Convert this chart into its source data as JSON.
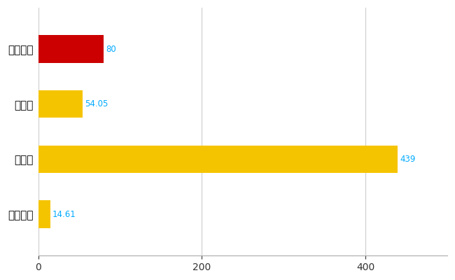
{
  "categories": [
    "うるま市",
    "県平均",
    "県最大",
    "全国平均"
  ],
  "values": [
    80,
    54.05,
    439,
    14.61
  ],
  "bar_colors": [
    "#cc0000",
    "#f5c400",
    "#f5c400",
    "#f5c400"
  ],
  "value_labels": [
    "80",
    "54.05",
    "439",
    "14.61"
  ],
  "label_color": "#00aaff",
  "xlim": [
    0,
    500
  ],
  "xticks": [
    0,
    200,
    400
  ],
  "background_color": "#ffffff",
  "grid_color": "#cccccc",
  "bar_height": 0.5,
  "figsize": [
    6.5,
    4.0
  ],
  "dpi": 100
}
